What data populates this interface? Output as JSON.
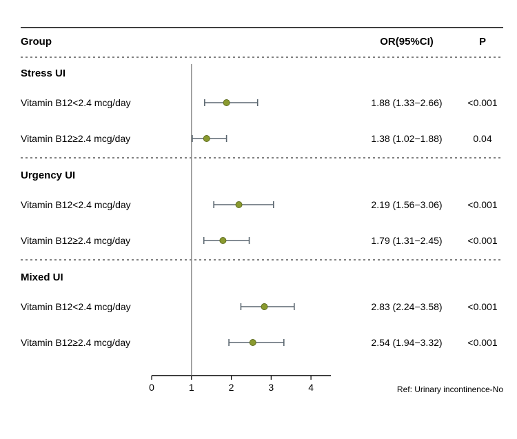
{
  "header": {
    "group": "Group",
    "or": "OR(95%CI)",
    "p": "P"
  },
  "footer": {
    "ref": "Ref: Urinary incontinence-No"
  },
  "axis": {
    "ticks": [
      0,
      1,
      2,
      3,
      4
    ],
    "xmin": 0,
    "xmax": 4.5
  },
  "refline_x": 1,
  "colors": {
    "text": "#000000",
    "rule_solid": "#000000",
    "rule_dash": "#000000",
    "axis": "#000000",
    "refline": "#7a7a7a",
    "whisker": "#5b6770",
    "point_fill": "#8a9a2f",
    "point_stroke": "#5f6e1f",
    "background": "#ffffff"
  },
  "style": {
    "header_fontsize": 15,
    "section_fontsize": 15,
    "row_fontsize": 14,
    "axis_fontsize": 14,
    "ref_fontsize": 12,
    "point_radius": 4.5,
    "whisker_width": 1.6,
    "cap_half": 5,
    "rule_width": 1.4,
    "dash": "3 4"
  },
  "sections": [
    {
      "title": "Stress UI",
      "rows": [
        {
          "label": "Vitamin B12<2.4 mcg/day",
          "or": 1.88,
          "lo": 1.33,
          "hi": 2.66,
          "or_text": "1.88 (1.33−2.66)",
          "p": "<0.001"
        },
        {
          "label": "Vitamin B12≥2.4 mcg/day",
          "or": 1.38,
          "lo": 1.02,
          "hi": 1.88,
          "or_text": "1.38 (1.02−1.88)",
          "p": "0.04"
        }
      ]
    },
    {
      "title": "Urgency UI",
      "rows": [
        {
          "label": "Vitamin B12<2.4 mcg/day",
          "or": 2.19,
          "lo": 1.56,
          "hi": 3.06,
          "or_text": "2.19 (1.56−3.06)",
          "p": "<0.001"
        },
        {
          "label": "Vitamin B12≥2.4 mcg/day",
          "or": 1.79,
          "lo": 1.31,
          "hi": 2.45,
          "or_text": "1.79 (1.31−2.45)",
          "p": "<0.001"
        }
      ]
    },
    {
      "title": "Mixed UI",
      "rows": [
        {
          "label": "Vitamin B12<2.4 mcg/day",
          "or": 2.83,
          "lo": 2.24,
          "hi": 3.58,
          "or_text": "2.83 (2.24−3.58)",
          "p": "<0.001"
        },
        {
          "label": "Vitamin B12≥2.4 mcg/day",
          "or": 2.54,
          "lo": 1.94,
          "hi": 3.32,
          "or_text": "2.54 (1.94−3.32)",
          "p": "<0.001"
        }
      ]
    }
  ]
}
